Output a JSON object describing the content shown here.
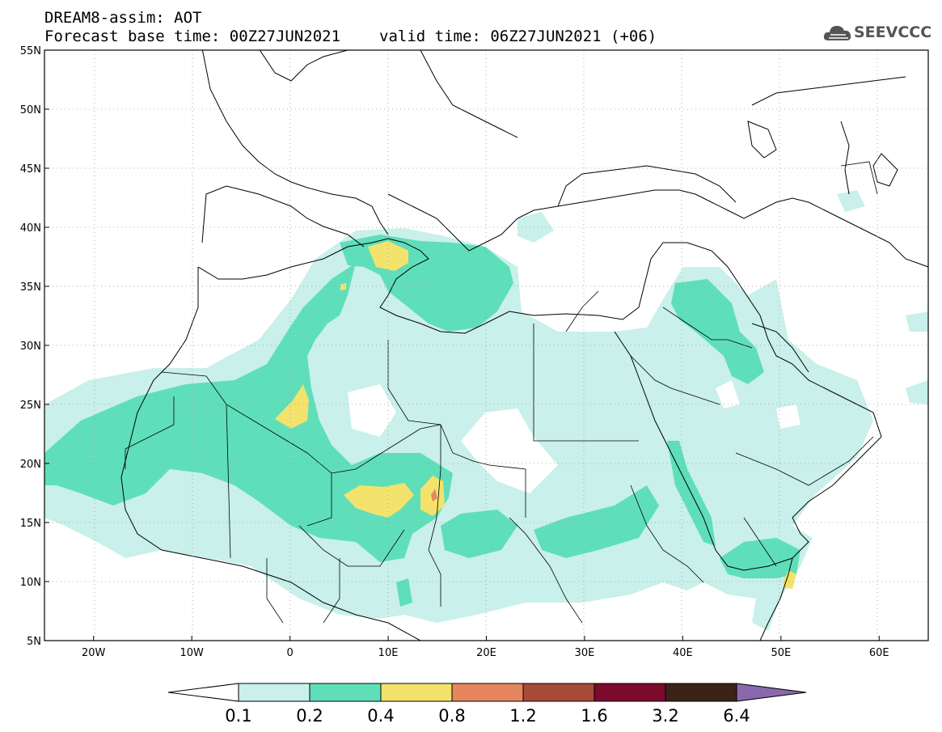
{
  "header": {
    "title_line1": "DREAM8-assim: AOT",
    "base_time": "Forecast base time: 00Z27JUN2021",
    "valid_time": "valid time: 06Z27JUN2021 (+06)"
  },
  "logo": {
    "text": "SEEVCCC",
    "icon": "cloud-icon"
  },
  "map": {
    "lon_labels": [
      "20W",
      "10W",
      "0",
      "10E",
      "20E",
      "30E",
      "40E",
      "50E",
      "60E"
    ],
    "lat_labels": [
      "55N",
      "50N",
      "45N",
      "40N",
      "35N",
      "30N",
      "25N",
      "20N",
      "15N",
      "10N",
      "5N"
    ],
    "lon_range": [
      -25,
      65
    ],
    "lat_range": [
      5,
      55
    ]
  },
  "colorbar": {
    "levels": [
      "0.1",
      "0.2",
      "0.4",
      "0.8",
      "1.2",
      "1.6",
      "3.2",
      "6.4"
    ],
    "colors": [
      "#ffffff",
      "#c9f0ea",
      "#5fdfb9",
      "#f3e36d",
      "#e5865f",
      "#a84a3a",
      "#7b0a2d",
      "#3b2417",
      "#8a68ad"
    ]
  }
}
